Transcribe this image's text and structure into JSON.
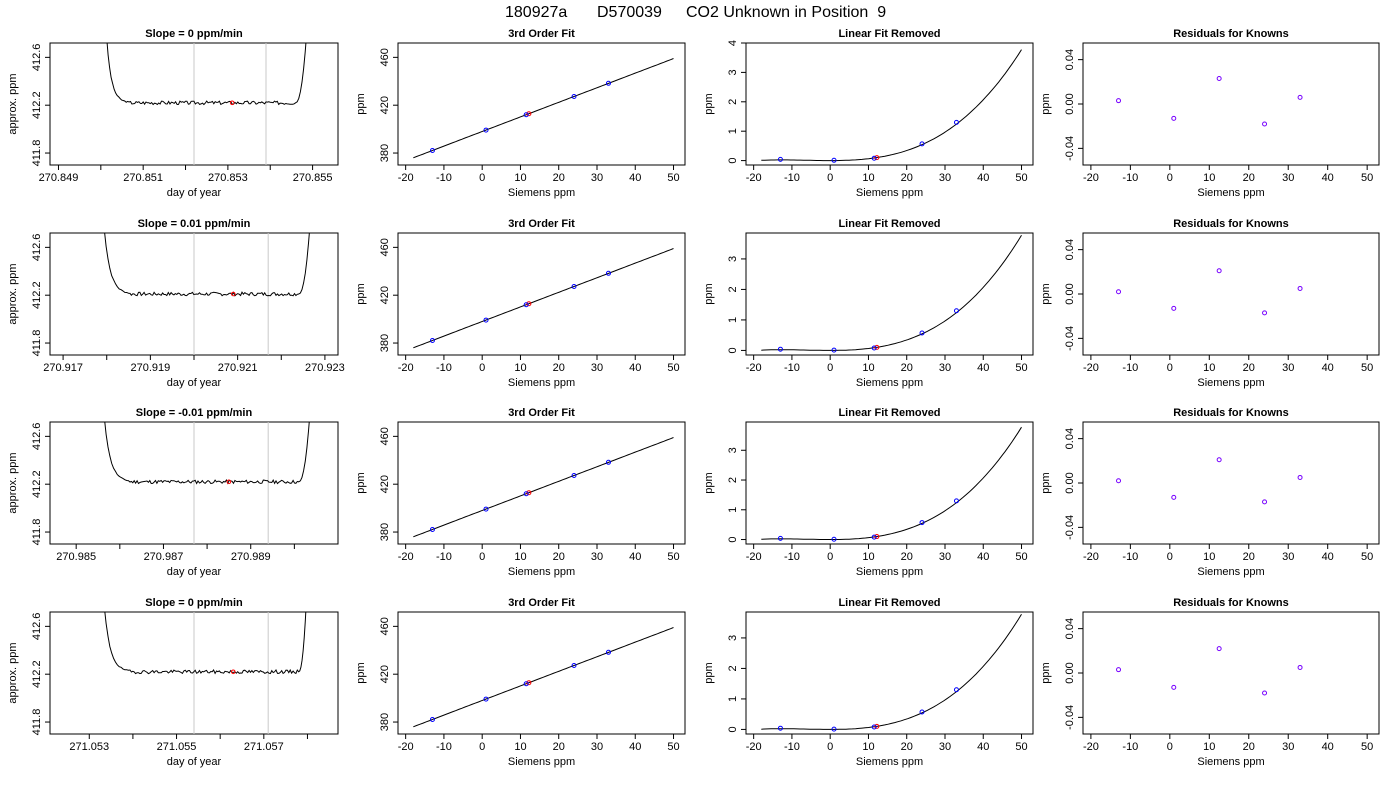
{
  "figure": {
    "title_parts": [
      "180927a",
      "D570039",
      "CO2 Unknown in Position  9"
    ]
  },
  "chart_data": [
    {
      "type": "line",
      "title": "Slope =  0  ppm/min",
      "xlabel": "day of year",
      "ylabel": "approx. ppm",
      "xlim": [
        270.8488,
        270.8556
      ],
      "ylim": [
        411.7,
        412.72
      ],
      "xticks": [
        270.849,
        270.851,
        270.853,
        270.855
      ],
      "xtick_labels": [
        "270.849",
        "270.851",
        "270.853",
        "270.855"
      ],
      "xtick_minor": [
        270.85,
        270.852,
        270.854
      ],
      "yticks": [
        411.8,
        412.2,
        412.6
      ],
      "ytick_labels": [
        "411.8",
        "412.2",
        "412.6"
      ],
      "vlines": [
        270.8522,
        270.8539
      ],
      "trace": {
        "x_start": 270.8501,
        "x_plateau_start": 270.8506,
        "x_plateau_end": 270.8546,
        "x_end": 270.8549,
        "level": 412.22,
        "seed": 3
      },
      "marker": {
        "x": 270.8531,
        "y": 412.22,
        "color": "#ff0000"
      }
    },
    {
      "type": "line",
      "title": "3rd Order Fit",
      "xlabel": "Siemens ppm",
      "ylabel": "ppm",
      "xlim": [
        -22,
        53
      ],
      "ylim": [
        370,
        472
      ],
      "xticks": [
        -20,
        -10,
        0,
        10,
        20,
        30,
        40,
        50
      ],
      "yticks": [
        380,
        420,
        460
      ],
      "curve": {
        "c0": 398,
        "c1": 1.22,
        "c2": 0,
        "c3": 0,
        "x_from": -18,
        "x_to": 50
      },
      "points": {
        "x": [
          -13,
          1,
          11.5,
          24,
          33
        ],
        "y": [
          382.1,
          399.2,
          412,
          427.3,
          438.3
        ],
        "color": "#0000ff"
      },
      "unknown": {
        "x": 12.2,
        "y": 412.9,
        "color": "#ff0000"
      }
    },
    {
      "type": "line",
      "title": "Linear Fit Removed",
      "xlabel": "Siemens ppm",
      "ylabel": "ppm",
      "xlim": [
        -22,
        53
      ],
      "ylim": [
        -0.15,
        4
      ],
      "xticks": [
        -20,
        -10,
        0,
        10,
        20,
        30,
        40,
        50
      ],
      "yticks": [
        0,
        1,
        2,
        3,
        4
      ],
      "curve": {
        "c0": 0,
        "c1": 0,
        "c2": 0.00042,
        "c3": 2.18e-05,
        "x_from": -18,
        "x_to": 50
      },
      "points": {
        "x": [
          -13,
          1,
          11.5,
          24,
          33
        ],
        "y": [
          0.04,
          0.01,
          0.08,
          0.57,
          1.3
        ],
        "color": "#0000ff"
      },
      "unknown": {
        "x": 12.2,
        "y": 0.1,
        "color": "#ff0000"
      }
    },
    {
      "type": "scatter",
      "title": "Residuals for Knowns",
      "xlabel": "Siemens ppm",
      "ylabel": "ppm",
      "xlim": [
        -22,
        53
      ],
      "ylim": [
        -0.055,
        0.055
      ],
      "xticks": [
        -20,
        -10,
        0,
        10,
        20,
        30,
        40,
        50
      ],
      "yticks": [
        -0.04,
        0,
        0.04
      ],
      "ytick_labels": [
        "-0.04",
        "0.00",
        "0.04"
      ],
      "points": {
        "x": [
          -13,
          1,
          12.5,
          24,
          33
        ],
        "y": [
          0.003,
          -0.013,
          0.023,
          -0.018,
          0.006
        ],
        "color": "#7700ff"
      }
    },
    {
      "type": "line",
      "title": "Slope =  0.01  ppm/min",
      "xlabel": "day of year",
      "ylabel": "approx. ppm",
      "xlim": [
        270.9167,
        270.9233
      ],
      "ylim": [
        411.7,
        412.72
      ],
      "xticks": [
        270.917,
        270.919,
        270.921,
        270.923
      ],
      "xtick_labels": [
        "270.917",
        "270.919",
        "270.921",
        "270.923"
      ],
      "xtick_minor": [
        270.918,
        270.92,
        270.922
      ],
      "yticks": [
        411.8,
        412.2,
        412.6
      ],
      "ytick_labels": [
        "411.8",
        "412.2",
        "412.6"
      ],
      "vlines": [
        270.92,
        270.9217
      ],
      "trace": {
        "x_start": 270.9179,
        "x_plateau_start": 270.9185,
        "x_plateau_end": 270.9224,
        "x_end": 270.9227,
        "level": 412.21,
        "seed": 7
      },
      "marker": {
        "x": 270.9209,
        "y": 412.21,
        "color": "#ff0000"
      }
    },
    {
      "type": "line",
      "title": "3rd Order Fit",
      "xlabel": "Siemens ppm",
      "ylabel": "ppm",
      "xlim": [
        -22,
        53
      ],
      "ylim": [
        370,
        472
      ],
      "xticks": [
        -20,
        -10,
        0,
        10,
        20,
        30,
        40,
        50
      ],
      "yticks": [
        380,
        420,
        460
      ],
      "curve": {
        "c0": 398,
        "c1": 1.22,
        "c2": 0,
        "c3": 0,
        "x_from": -18,
        "x_to": 50
      },
      "points": {
        "x": [
          -13,
          1,
          11.5,
          24,
          33
        ],
        "y": [
          382.1,
          399.2,
          412,
          427.3,
          438.3
        ],
        "color": "#0000ff"
      },
      "unknown": {
        "x": 12.2,
        "y": 412.9,
        "color": "#ff0000"
      }
    },
    {
      "type": "line",
      "title": "Linear Fit Removed",
      "xlabel": "Siemens ppm",
      "ylabel": "ppm",
      "xlim": [
        -22,
        53
      ],
      "ylim": [
        -0.15,
        3.85
      ],
      "xticks": [
        -20,
        -10,
        0,
        10,
        20,
        30,
        40,
        50
      ],
      "yticks": [
        0,
        1,
        2,
        3
      ],
      "curve": {
        "c0": 0,
        "c1": 0,
        "c2": 0.00042,
        "c3": 2.18e-05,
        "x_from": -18,
        "x_to": 50
      },
      "points": {
        "x": [
          -13,
          1,
          11.5,
          24,
          33
        ],
        "y": [
          0.04,
          0.01,
          0.08,
          0.57,
          1.3
        ],
        "color": "#0000ff"
      },
      "unknown": {
        "x": 12.2,
        "y": 0.1,
        "color": "#ff0000"
      }
    },
    {
      "type": "scatter",
      "title": "Residuals for Knowns",
      "xlabel": "Siemens ppm",
      "ylabel": "ppm",
      "xlim": [
        -22,
        53
      ],
      "ylim": [
        -0.055,
        0.055
      ],
      "xticks": [
        -20,
        -10,
        0,
        10,
        20,
        30,
        40,
        50
      ],
      "yticks": [
        -0.04,
        0,
        0.04
      ],
      "ytick_labels": [
        "-0.04",
        "0.00",
        "0.04"
      ],
      "points": {
        "x": [
          -13,
          1,
          12.5,
          24,
          33
        ],
        "y": [
          0.002,
          -0.013,
          0.021,
          -0.017,
          0.005
        ],
        "color": "#7700ff"
      }
    },
    {
      "type": "line",
      "title": "Slope =  -0.01  ppm/min",
      "xlabel": "day of year",
      "ylabel": "approx. ppm",
      "xlim": [
        270.9844,
        270.991
      ],
      "ylim": [
        411.7,
        412.72
      ],
      "xticks": [
        270.985,
        270.987,
        270.989
      ],
      "xtick_labels": [
        "270.985",
        "270.987",
        "270.989"
      ],
      "xtick_minor": [
        270.986,
        270.988,
        270.99
      ],
      "yticks": [
        411.8,
        412.2,
        412.6
      ],
      "ytick_labels": [
        "411.8",
        "412.2",
        "412.6"
      ],
      "vlines": [
        270.9877,
        270.9894
      ],
      "trace": {
        "x_start": 270.9856,
        "x_plateau_start": 270.9862,
        "x_plateau_end": 270.9901,
        "x_end": 270.9904,
        "level": 412.22,
        "seed": 11
      },
      "marker": {
        "x": 270.9885,
        "y": 412.22,
        "color": "#ff0000"
      }
    },
    {
      "type": "line",
      "title": "3rd Order Fit",
      "xlabel": "Siemens ppm",
      "ylabel": "ppm",
      "xlim": [
        -22,
        53
      ],
      "ylim": [
        370,
        472
      ],
      "xticks": [
        -20,
        -10,
        0,
        10,
        20,
        30,
        40,
        50
      ],
      "yticks": [
        380,
        420,
        460
      ],
      "curve": {
        "c0": 398,
        "c1": 1.22,
        "c2": 0,
        "c3": 0,
        "x_from": -18,
        "x_to": 50
      },
      "points": {
        "x": [
          -13,
          1,
          11.5,
          24,
          33
        ],
        "y": [
          382.1,
          399.2,
          412,
          427.3,
          438.3
        ],
        "color": "#0000ff"
      },
      "unknown": {
        "x": 12.2,
        "y": 412.9,
        "color": "#ff0000"
      }
    },
    {
      "type": "line",
      "title": "Linear Fit Removed",
      "xlabel": "Siemens ppm",
      "ylabel": "ppm",
      "xlim": [
        -22,
        53
      ],
      "ylim": [
        -0.15,
        3.95
      ],
      "xticks": [
        -20,
        -10,
        0,
        10,
        20,
        30,
        40,
        50
      ],
      "yticks": [
        0,
        1,
        2,
        3
      ],
      "curve": {
        "c0": 0,
        "c1": 0,
        "c2": 0.00042,
        "c3": 2.18e-05,
        "x_from": -18,
        "x_to": 50
      },
      "points": {
        "x": [
          -13,
          1,
          11.5,
          24,
          33
        ],
        "y": [
          0.04,
          0.01,
          0.08,
          0.57,
          1.3
        ],
        "color": "#0000ff"
      },
      "unknown": {
        "x": 12.2,
        "y": 0.1,
        "color": "#ff0000"
      }
    },
    {
      "type": "scatter",
      "title": "Residuals for Knowns",
      "xlabel": "Siemens ppm",
      "ylabel": "ppm",
      "xlim": [
        -22,
        53
      ],
      "ylim": [
        -0.055,
        0.055
      ],
      "xticks": [
        -20,
        -10,
        0,
        10,
        20,
        30,
        40,
        50
      ],
      "yticks": [
        -0.04,
        0,
        0.04
      ],
      "ytick_labels": [
        "-0.04",
        "0.00",
        "0.04"
      ],
      "points": {
        "x": [
          -13,
          1,
          12.5,
          24,
          33
        ],
        "y": [
          0.002,
          -0.013,
          0.021,
          -0.017,
          0.005
        ],
        "color": "#7700ff"
      }
    },
    {
      "type": "line",
      "title": "Slope =  0  ppm/min",
      "xlabel": "day of year",
      "ylabel": "approx. ppm",
      "xlim": [
        271.0521,
        271.0587
      ],
      "ylim": [
        411.7,
        412.72
      ],
      "xticks": [
        271.053,
        271.055,
        271.057
      ],
      "xtick_labels": [
        "271.053",
        "271.055",
        "271.057"
      ],
      "xtick_minor": [
        271.054,
        271.056,
        271.058
      ],
      "yticks": [
        411.8,
        412.2,
        412.6
      ],
      "ytick_labels": [
        "411.8",
        "412.2",
        "412.6"
      ],
      "vlines": [
        271.0554,
        271.0571
      ],
      "trace": {
        "x_start": 271.0533,
        "x_plateau_start": 271.0539,
        "x_plateau_end": 271.0578,
        "x_end": 271.058,
        "level": 412.22,
        "seed": 19
      },
      "marker": {
        "x": 271.0563,
        "y": 412.22,
        "color": "#ff0000"
      }
    },
    {
      "type": "line",
      "title": "3rd Order Fit",
      "xlabel": "Siemens ppm",
      "ylabel": "ppm",
      "xlim": [
        -22,
        53
      ],
      "ylim": [
        370,
        472
      ],
      "xticks": [
        -20,
        -10,
        0,
        10,
        20,
        30,
        40,
        50
      ],
      "yticks": [
        380,
        420,
        460
      ],
      "curve": {
        "c0": 398,
        "c1": 1.22,
        "c2": 0,
        "c3": 0,
        "x_from": -18,
        "x_to": 50
      },
      "points": {
        "x": [
          -13,
          1,
          11.5,
          24,
          33
        ],
        "y": [
          382.1,
          399.2,
          412,
          427.3,
          438.3
        ],
        "color": "#0000ff"
      },
      "unknown": {
        "x": 12.2,
        "y": 412.9,
        "color": "#ff0000"
      }
    },
    {
      "type": "line",
      "title": "Linear Fit Removed",
      "xlabel": "Siemens ppm",
      "ylabel": "ppm",
      "xlim": [
        -22,
        53
      ],
      "ylim": [
        -0.15,
        3.85
      ],
      "xticks": [
        -20,
        -10,
        0,
        10,
        20,
        30,
        40,
        50
      ],
      "yticks": [
        0,
        1,
        2,
        3
      ],
      "curve": {
        "c0": 0,
        "c1": 0,
        "c2": 0.00042,
        "c3": 2.18e-05,
        "x_from": -18,
        "x_to": 50
      },
      "points": {
        "x": [
          -13,
          1,
          11.5,
          24,
          33
        ],
        "y": [
          0.04,
          0.01,
          0.08,
          0.57,
          1.3
        ],
        "color": "#0000ff"
      },
      "unknown": {
        "x": 12.2,
        "y": 0.1,
        "color": "#ff0000"
      }
    },
    {
      "type": "scatter",
      "title": "Residuals for Knowns",
      "xlabel": "Siemens ppm",
      "ylabel": "ppm",
      "xlim": [
        -22,
        53
      ],
      "ylim": [
        -0.055,
        0.055
      ],
      "xticks": [
        -20,
        -10,
        0,
        10,
        20,
        30,
        40,
        50
      ],
      "yticks": [
        -0.04,
        0,
        0.04
      ],
      "ytick_labels": [
        "-0.04",
        "0.00",
        "0.04"
      ],
      "points": {
        "x": [
          -13,
          1,
          12.5,
          24,
          33
        ],
        "y": [
          0.003,
          -0.013,
          0.022,
          -0.018,
          0.005
        ],
        "color": "#7700ff"
      }
    }
  ]
}
